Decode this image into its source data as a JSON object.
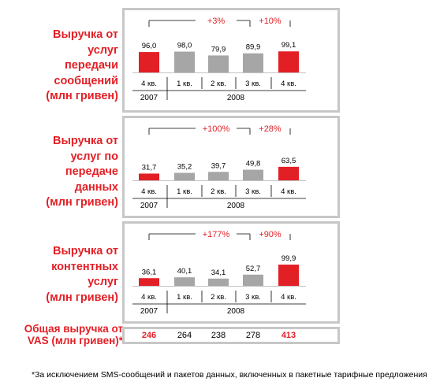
{
  "colors": {
    "highlight": "#e31f26",
    "neutral": "#a6a6a6",
    "frame": "#c7c7c7"
  },
  "chart_data": [
    {
      "type": "bar",
      "title": "Выручка от услуг передачи сообщений (млн гривен)",
      "title_lines": [
        "Выручка от",
        "услуг",
        "передачи",
        "сообщений",
        "(млн гривен)"
      ],
      "categories": [
        "4 кв.",
        "1 кв.",
        "2 кв.",
        "3 кв.",
        "4 кв."
      ],
      "years": [
        {
          "label": "2007"
        },
        {
          "label": "2008"
        }
      ],
      "values": [
        96.0,
        98.0,
        79.9,
        89.9,
        99.1
      ],
      "value_labels": [
        "96,0",
        "98,0",
        "79,9",
        "89,9",
        "99,1"
      ],
      "highlight": [
        true,
        false,
        false,
        false,
        true
      ],
      "growth": [
        {
          "label": "+3%",
          "from": 0,
          "to": 4
        },
        {
          "label": "+10%",
          "from": 3,
          "to": 4
        }
      ]
    },
    {
      "type": "bar",
      "title": "Выручка от услуг по передаче данных (млн гривен)",
      "title_lines": [
        "Выручка от",
        "услуг по",
        "передаче",
        "данных",
        "(млн гривен)"
      ],
      "categories": [
        "4 кв.",
        "1 кв.",
        "2 кв.",
        "3 кв.",
        "4 кв."
      ],
      "years": [
        {
          "label": "2007"
        },
        {
          "label": "2008"
        }
      ],
      "values": [
        31.7,
        35.2,
        39.7,
        49.8,
        63.5
      ],
      "value_labels": [
        "31,7",
        "35,2",
        "39,7",
        "49,8",
        "63,5"
      ],
      "highlight": [
        true,
        false,
        false,
        false,
        true
      ],
      "growth": [
        {
          "label": "+100%",
          "from": 0,
          "to": 4
        },
        {
          "label": "+28%",
          "from": 3,
          "to": 4
        }
      ]
    },
    {
      "type": "bar",
      "title": "Выручка от контентных услуг (млн гривен)",
      "title_lines": [
        "Выручка от",
        "контентных",
        "услуг",
        "(млн гривен)"
      ],
      "categories": [
        "4 кв.",
        "1 кв.",
        "2 кв.",
        "3 кв.",
        "4 кв."
      ],
      "years": [
        {
          "label": "2007"
        },
        {
          "label": "2008"
        }
      ],
      "values": [
        36.1,
        40.1,
        34.1,
        52.7,
        99.9
      ],
      "value_labels": [
        "36,1",
        "40,1",
        "34,1",
        "52,7",
        "99,9"
      ],
      "highlight": [
        true,
        false,
        false,
        false,
        true
      ],
      "growth": [
        {
          "label": "+177%",
          "from": 0,
          "to": 4
        },
        {
          "label": "+90%",
          "from": 3,
          "to": 4
        }
      ]
    }
  ],
  "total": {
    "label_line1": "Общая выручка от",
    "label_line2": "VAS (млн гривен)*",
    "values": [
      "246",
      "264",
      "238",
      "278",
      "413"
    ],
    "highlight": [
      true,
      false,
      false,
      false,
      true
    ]
  },
  "footnote": "*За исключением SMS-сообщений и пакетов данных, включенных в пакетные тарифные предложения"
}
